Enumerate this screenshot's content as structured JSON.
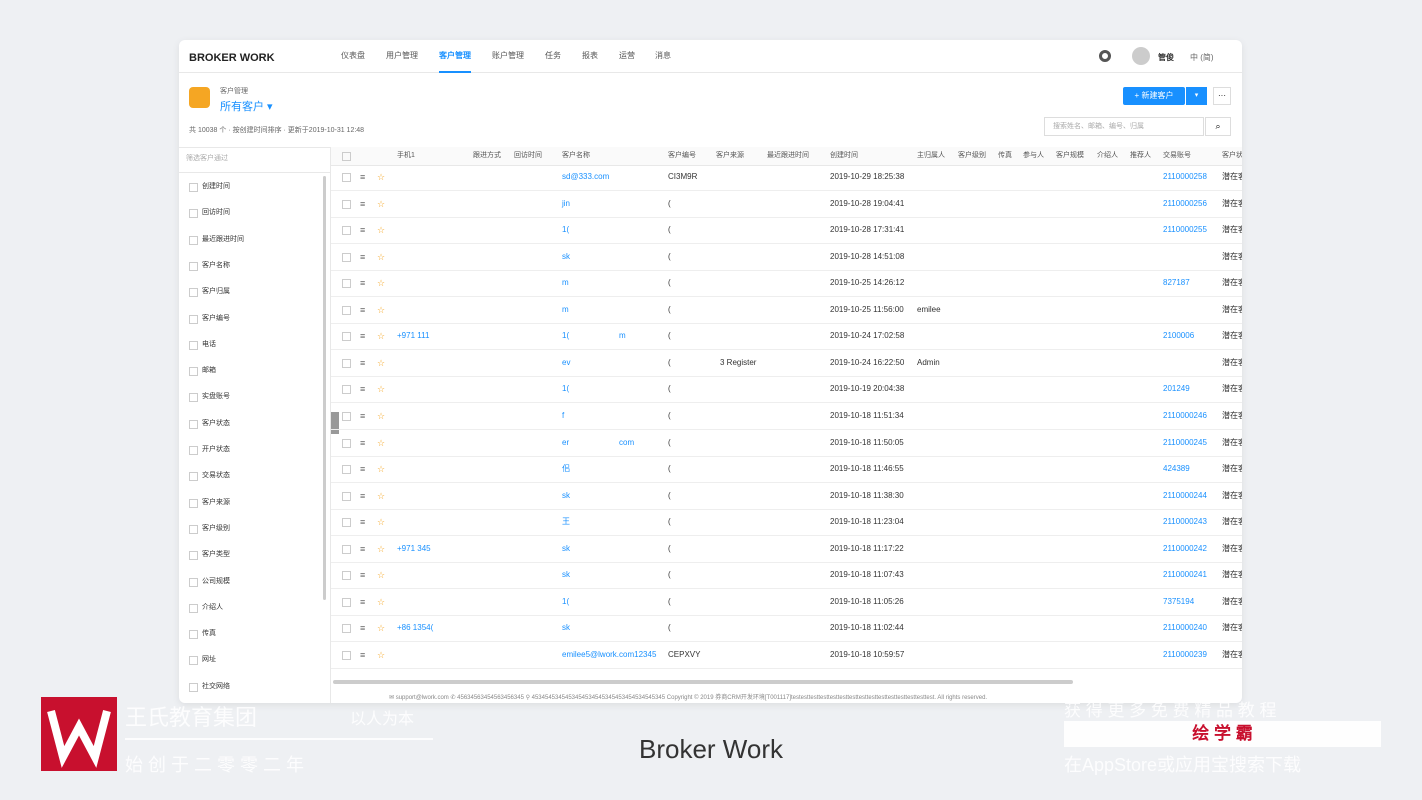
{
  "nav": {
    "brand": "BROKER WORK",
    "items": [
      "仪表盘",
      "用户管理",
      "客户管理",
      "账户管理",
      "任务",
      "报表",
      "运营",
      "消息"
    ],
    "active": 2,
    "user": "管俊",
    "lang": "中 (简)"
  },
  "header": {
    "breadcrumb": "客户管理",
    "title": "所有客户",
    "summary": "共 10038 个 · 按创建时间排序 · 更新于2019-10-31 12:48",
    "new_button": "+ 新建客户",
    "search_placeholder": "搜索姓名、邮箱、编号、归属"
  },
  "sidebar": {
    "filter_placeholder": "筛选客户通过",
    "items": [
      "创建时间",
      "回访时间",
      "最近跟进时间",
      "客户名称",
      "客户归属",
      "客户编号",
      "电话",
      "邮箱",
      "实盘账号",
      "客户状态",
      "开户状态",
      "交易状态",
      "客户来源",
      "客户级别",
      "客户类型",
      "公司规模",
      "介绍人",
      "传真",
      "网址",
      "社交网络"
    ]
  },
  "table": {
    "columns": [
      "手机1",
      "跟进方式",
      "回访时间",
      "客户名称",
      "客户编号",
      "客户来源",
      "最近跟进时间",
      "创建时间",
      "主归属人",
      "客户级别",
      "传真",
      "参与人",
      "客户规模",
      "介绍人",
      "推荐人",
      "交易账号",
      "客户状态"
    ],
    "rows": [
      {
        "phone": "",
        "name": "sd@333.com",
        "id": "CI3M9R",
        "created": "2019-10-29 18:25:38",
        "owner": "",
        "account": "2110000258",
        "status": "潜在客户"
      },
      {
        "phone": "",
        "name": "jin",
        "id": "(",
        "created": "2019-10-28 19:04:41",
        "owner": "",
        "account": "2110000256",
        "status": "潜在客户"
      },
      {
        "phone": "",
        "name": "1(",
        "id": "(",
        "created": "2019-10-28 17:31:41",
        "owner": "",
        "account": "2110000255",
        "status": "潜在客户"
      },
      {
        "phone": "",
        "name": "sk",
        "id": "(",
        "created": "2019-10-28 14:51:08",
        "owner": "",
        "account": "",
        "status": "潜在客户"
      },
      {
        "phone": "",
        "name": "m",
        "id": "(",
        "created": "2019-10-25 14:26:12",
        "owner": "",
        "account": "827187",
        "status": "潜在客户"
      },
      {
        "phone": "",
        "name": "m",
        "id": "(",
        "created": "2019-10-25 11:56:00",
        "owner": "emilee",
        "account": "",
        "status": "潜在客户"
      },
      {
        "phone": "+971 111",
        "name": "1(",
        "name_tail": "m",
        "id": "(",
        "created": "2019-10-24 17:02:58",
        "owner": "",
        "account": "2100006",
        "status": "潜在客户"
      },
      {
        "phone": "",
        "name": "ev",
        "id": "(",
        "source": "3 Register",
        "created": "2019-10-24 16:22:50",
        "owner": "Admin",
        "account": "",
        "status": "潜在客户"
      },
      {
        "phone": "",
        "name": "1(",
        "id": "(",
        "created": "2019-10-19 20:04:38",
        "owner": "",
        "account": "201249",
        "status": "潜在客户"
      },
      {
        "phone": "",
        "name": "f",
        "id": "(",
        "created": "2019-10-18 11:51:34",
        "owner": "",
        "account": "2110000246",
        "status": "潜在客户"
      },
      {
        "phone": "",
        "name": "er",
        "name_tail": "com",
        "id": "(",
        "created": "2019-10-18 11:50:05",
        "owner": "",
        "account": "2110000245",
        "status": "潜在客户"
      },
      {
        "phone": "",
        "name": "佀",
        "id": "(",
        "created": "2019-10-18 11:46:55",
        "owner": "",
        "account": "424389",
        "status": "潜在客户"
      },
      {
        "phone": "",
        "name": "sk",
        "id": "(",
        "created": "2019-10-18 11:38:30",
        "owner": "",
        "account": "2110000244",
        "status": "潜在客户"
      },
      {
        "phone": "",
        "name": "王",
        "id": "(",
        "created": "2019-10-18 11:23:04",
        "owner": "",
        "account": "2110000243",
        "status": "潜在客户"
      },
      {
        "phone": "+971 345",
        "name": "sk",
        "id": "(",
        "created": "2019-10-18 11:17:22",
        "owner": "",
        "account": "2110000242",
        "status": "潜在客户"
      },
      {
        "phone": "",
        "name": "sk",
        "id": "(",
        "created": "2019-10-18 11:07:43",
        "owner": "",
        "account": "2110000241",
        "status": "潜在客户"
      },
      {
        "phone": "",
        "name": "1(",
        "id": "(",
        "created": "2019-10-18 11:05:26",
        "owner": "",
        "account": "7375194",
        "status": "潜在客户"
      },
      {
        "phone": "+86 1354(",
        "name": "sk",
        "id": "(",
        "created": "2019-10-18 11:02:44",
        "owner": "",
        "account": "2110000240",
        "status": "潜在客户"
      },
      {
        "phone": "",
        "name": "emilee5@lwork.com12345",
        "id": "CEPXVY",
        "created": "2019-10-18 10:59:57",
        "owner": "",
        "account": "2110000239",
        "status": "潜在客户"
      }
    ]
  },
  "footer": "✉ support@lwork.com ✆ 45634563454563456345 ⚲ 4534545345453454534545345453454534545345 Copyright © 2019 券商CRM开发环境[T001117]testesttesttesttesttesttesttesttesttesttesttesttesttesttest. All rights reserved.",
  "overlay": {
    "org": "王氏教育集团",
    "motto": "以人为本",
    "since": "始 创 于 二 零 零 二 年",
    "caption": "Broker Work",
    "promo": "获 得 更 多 免 费 精 品 教 程",
    "brand": "绘 学 霸",
    "download": "在AppStore或应用宝搜索下载"
  }
}
